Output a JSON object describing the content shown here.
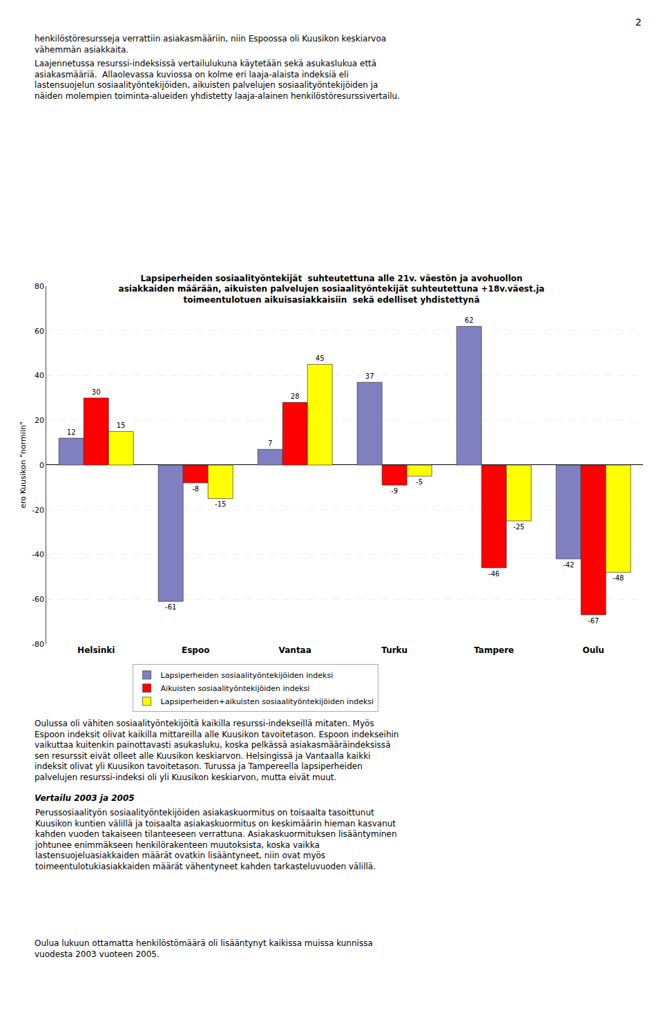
{
  "chart_data": {
    "type": "bar",
    "title": "Lapsiperheiden sosiaalityöntekijät  suhteutettuna alle 21v. väestön ja avohuollon\nasiakkaiden määrään, aikuisten palvelujen sosiaalityöntekijät suhteutettuna +18v.väest.ja\ntoimeentulotuen aikuisasiakkaisiin  sekä edelliset yhdistettynä",
    "ylabel": "ero Kuusikon \"normiin\"",
    "categories": [
      "Helsinki",
      "Espoo",
      "Vantaa",
      "Turku",
      "Tampere",
      "Oulu"
    ],
    "series": [
      {
        "name": "Lapsiperheiden sosiaalityöntekijöiden indeksi",
        "color": "#8080C0",
        "values": [
          12,
          -61,
          7,
          37,
          62,
          -42
        ]
      },
      {
        "name": "Aikuisten sosiaalityöntekijöiden indeksi",
        "color": "#FF0000",
        "values": [
          30,
          -8,
          28,
          -9,
          -46,
          -67
        ]
      },
      {
        "name": "Lapsiperheiden+aikuisten sosiaalityöntekijöiden indeksi",
        "color": "#FFFF00",
        "values": [
          15,
          -15,
          45,
          -5,
          -25,
          -48
        ]
      }
    ],
    "ylim": [
      -80,
      80
    ],
    "yticks": [
      -80,
      -60,
      -40,
      -20,
      0,
      20,
      40,
      60,
      80
    ],
    "grid": true,
    "legend": "bottom",
    "data_labels": true,
    "annotations": [
      "2",
      "henkilöstöresursseja verrattiin asiakasmääriin, niin Espoossa oli Kuusikon keskiarvoa\nvähemmän asiakkaita.",
      "Laajennetussa resurssi-indeksissä vertailulukuna käytetään sekä asukaslukua että\nasiakasmääriä.  Allaolevassa kuviossa on kolme eri laaja-alaista indeksiä eli\nlastensuojelun sosiaalityöntekijöiden, aikuisten palvelujen sosiaalityöntekijöiden ja\nnäiden molempien toiminta-alueiden yhdistetty laaja-alainen henkilöstöresurssivertailu.",
      "Oulussa oli vähiten sosiaalityöntekijöitä kaikilla resurssi-indekseillä mitaten. Myös\nEspoon indeksit olivat kaikilla mittareilla alle Kuusikon tavoitetason. Espoon indekseihin\nvaikuttaa kuitenkin painottavasti asukasluku, koska pelkässä asiakasmääräindeksissä\nsen resurssit eivät olleet alle Kuusikon keskiarvon. Helsingissä ja Vantaalla kaikki\nindeksit olivat yli Kuusikon tavoitetason. Turussa ja Tampereella lapsiperheiden\npalvelujen resurssi-indeksi oli yli Kuusikon keskiarvon, mutta eivät muut.",
      "Vertailu 2003 ja 2005",
      "Perussosiaalityön sosiaalityöntekijöiden asiakaskuormitus on toisaalta tasoittunut\nKuusikon kuntien välillä ja toisaalta asiakaskuormitus on keskimäärin hieman kasvanut\nkahden vuoden takaiseen tilanteeseen verrattuna. Asiakaskuormituksen lisääntyminen\njohtunee enimmäkseen henkilörakenteen muutoksista, koska vaikka\nlastensuojeluasiakkaiden määrät ovatkin lisääntyneet, niin ovat myös\ntoimeentulotukiasiakkaiden määrät vähentyneet kahden tarkasteluvuoden välillä.",
      "Oulua lukuun ottamatta henkilöstömäärä oli lisääntynyt kaikissa muissa kunnissa\nvuodesta 2003 vuoteen 2005."
    ]
  }
}
